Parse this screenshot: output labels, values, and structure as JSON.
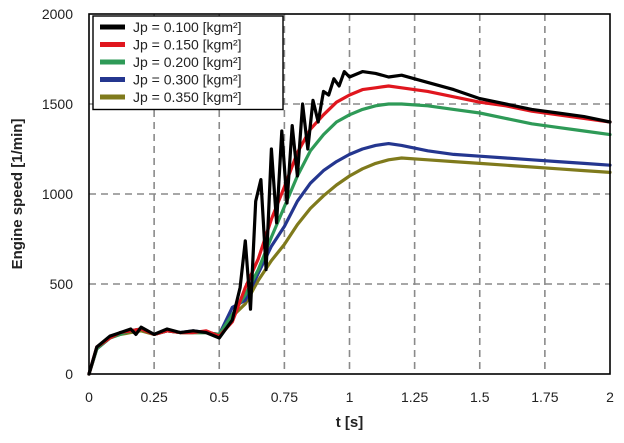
{
  "chart_data": {
    "type": "line",
    "xlabel": "t [s]",
    "ylabel": "Engine speed [1/min]",
    "xlim": [
      0,
      2
    ],
    "ylim": [
      0,
      2000
    ],
    "x_ticks": [
      "0",
      "0.25",
      "0.5",
      "0.75",
      "1",
      "1.25",
      "1.5",
      "1.75",
      "2"
    ],
    "y_ticks": [
      "0",
      "500",
      "1000",
      "1500",
      "2000"
    ],
    "grid": true,
    "legend_position": "top-left",
    "series": [
      {
        "name": "Jp = 0.100 [kgm²]",
        "color": "#000000",
        "x": [
          0,
          0.03,
          0.08,
          0.12,
          0.16,
          0.18,
          0.2,
          0.25,
          0.3,
          0.35,
          0.4,
          0.45,
          0.5,
          0.55,
          0.58,
          0.6,
          0.62,
          0.64,
          0.66,
          0.68,
          0.7,
          0.72,
          0.74,
          0.76,
          0.78,
          0.8,
          0.82,
          0.84,
          0.86,
          0.88,
          0.9,
          0.92,
          0.94,
          0.96,
          0.98,
          1.0,
          1.05,
          1.1,
          1.15,
          1.2,
          1.25,
          1.3,
          1.4,
          1.5,
          1.6,
          1.7,
          1.8,
          1.9,
          2.0
        ],
        "y": [
          0,
          150,
          210,
          230,
          250,
          220,
          260,
          220,
          250,
          230,
          240,
          230,
          200,
          300,
          480,
          740,
          360,
          960,
          1080,
          580,
          1250,
          840,
          1350,
          950,
          1380,
          1100,
          1500,
          1250,
          1520,
          1400,
          1570,
          1550,
          1640,
          1600,
          1680,
          1650,
          1680,
          1670,
          1650,
          1660,
          1640,
          1620,
          1580,
          1530,
          1500,
          1470,
          1450,
          1430,
          1400
        ]
      },
      {
        "name": "Jp = 0.150 [kgm²]",
        "color": "#e0161e",
        "x": [
          0,
          0.03,
          0.08,
          0.12,
          0.16,
          0.2,
          0.25,
          0.3,
          0.35,
          0.4,
          0.45,
          0.5,
          0.55,
          0.6,
          0.65,
          0.7,
          0.75,
          0.8,
          0.85,
          0.9,
          0.95,
          1.0,
          1.05,
          1.1,
          1.15,
          1.2,
          1.3,
          1.4,
          1.5,
          1.6,
          1.7,
          1.8,
          1.9,
          2.0
        ],
        "y": [
          0,
          150,
          200,
          230,
          240,
          250,
          220,
          240,
          230,
          230,
          240,
          210,
          290,
          480,
          640,
          860,
          1040,
          1230,
          1360,
          1440,
          1510,
          1550,
          1580,
          1590,
          1600,
          1590,
          1570,
          1540,
          1510,
          1490,
          1460,
          1440,
          1420,
          1400
        ]
      },
      {
        "name": "Jp = 0.200 [kgm²]",
        "color": "#2e9a57",
        "x": [
          0,
          0.03,
          0.08,
          0.12,
          0.16,
          0.2,
          0.25,
          0.3,
          0.35,
          0.4,
          0.45,
          0.5,
          0.55,
          0.6,
          0.65,
          0.7,
          0.75,
          0.8,
          0.85,
          0.9,
          0.95,
          1.0,
          1.05,
          1.1,
          1.15,
          1.2,
          1.3,
          1.4,
          1.5,
          1.6,
          1.7,
          1.8,
          1.9,
          2.0
        ],
        "y": [
          0,
          140,
          200,
          220,
          240,
          250,
          220,
          240,
          230,
          230,
          230,
          220,
          330,
          440,
          580,
          760,
          930,
          1100,
          1240,
          1330,
          1400,
          1440,
          1470,
          1490,
          1500,
          1500,
          1490,
          1470,
          1450,
          1420,
          1390,
          1370,
          1350,
          1330
        ]
      },
      {
        "name": "Jp = 0.300 [kgm²]",
        "color": "#24368f",
        "x": [
          0,
          0.03,
          0.08,
          0.12,
          0.16,
          0.2,
          0.25,
          0.3,
          0.35,
          0.4,
          0.45,
          0.5,
          0.55,
          0.6,
          0.65,
          0.7,
          0.75,
          0.8,
          0.85,
          0.9,
          0.95,
          1.0,
          1.05,
          1.1,
          1.15,
          1.2,
          1.3,
          1.4,
          1.5,
          1.6,
          1.7,
          1.8,
          1.9,
          2.0
        ],
        "y": [
          0,
          140,
          200,
          230,
          240,
          250,
          220,
          240,
          230,
          240,
          230,
          220,
          370,
          410,
          560,
          710,
          820,
          960,
          1060,
          1130,
          1180,
          1220,
          1250,
          1270,
          1280,
          1270,
          1240,
          1220,
          1210,
          1200,
          1190,
          1180,
          1170,
          1160
        ]
      },
      {
        "name": "Jp = 0.350 [kgm²]",
        "color": "#7f7a1c",
        "x": [
          0,
          0.03,
          0.08,
          0.12,
          0.16,
          0.2,
          0.25,
          0.3,
          0.35,
          0.4,
          0.45,
          0.5,
          0.55,
          0.6,
          0.65,
          0.7,
          0.75,
          0.8,
          0.85,
          0.9,
          0.95,
          1.0,
          1.05,
          1.1,
          1.15,
          1.2,
          1.3,
          1.4,
          1.5,
          1.6,
          1.7,
          1.8,
          1.9,
          2.0
        ],
        "y": [
          0,
          140,
          200,
          220,
          230,
          240,
          220,
          240,
          230,
          230,
          230,
          220,
          320,
          390,
          520,
          630,
          720,
          830,
          920,
          990,
          1050,
          1100,
          1140,
          1170,
          1190,
          1200,
          1190,
          1180,
          1170,
          1160,
          1150,
          1140,
          1130,
          1120
        ]
      }
    ]
  }
}
